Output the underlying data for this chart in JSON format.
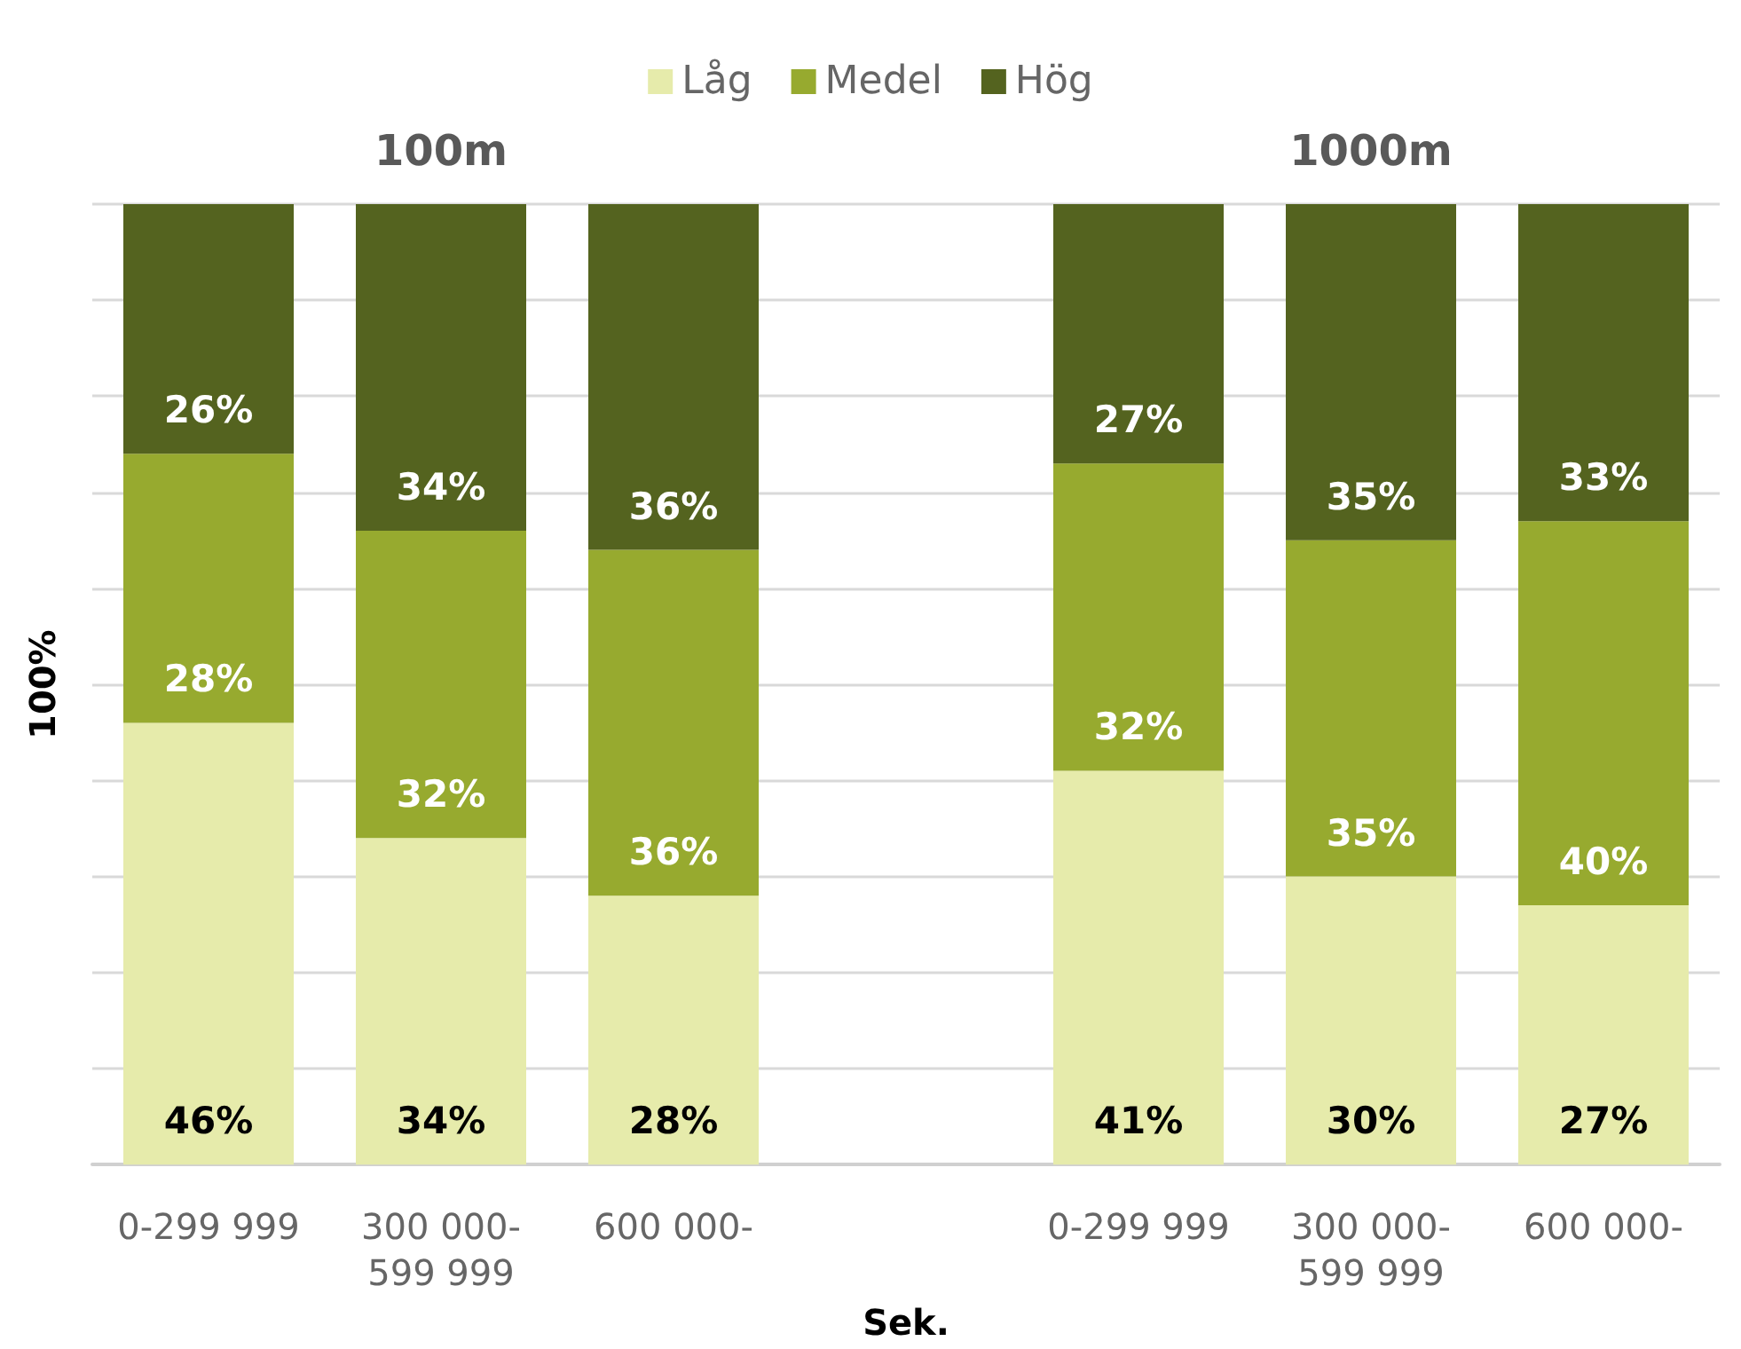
{
  "chart_data": {
    "type": "bar",
    "stacked": true,
    "legend": "top",
    "grid": "y",
    "tick_labels": "x",
    "ylabel": "100%",
    "xlabel": "Sek.",
    "annotations": [
      "100m",
      "1000m"
    ],
    "categories": [
      "0-299 999",
      "300 000-599 999",
      "600 000-",
      null,
      "0-299 999",
      "300 000-599 999",
      "600 000-"
    ],
    "series": [
      {
        "name": "Låg",
        "color": "#e6ebab",
        "values": [
          46,
          34,
          28,
          null,
          41,
          30,
          27
        ],
        "value_labels": [
          "46%",
          "34%",
          "28%",
          null,
          "41%",
          "30%",
          "27%"
        ]
      },
      {
        "name": "Medel",
        "color": "#97aa2f",
        "values": [
          28,
          32,
          36,
          null,
          32,
          35,
          40
        ],
        "value_labels": [
          "28%",
          "32%",
          "36%",
          null,
          "32%",
          "35%",
          "40%"
        ]
      },
      {
        "name": "Hög",
        "color": "#54631f",
        "values": [
          26,
          34,
          36,
          null,
          27,
          35,
          33
        ],
        "value_labels": [
          "26%",
          "34%",
          "36%",
          null,
          "27%",
          "35%",
          "33%"
        ]
      }
    ]
  }
}
